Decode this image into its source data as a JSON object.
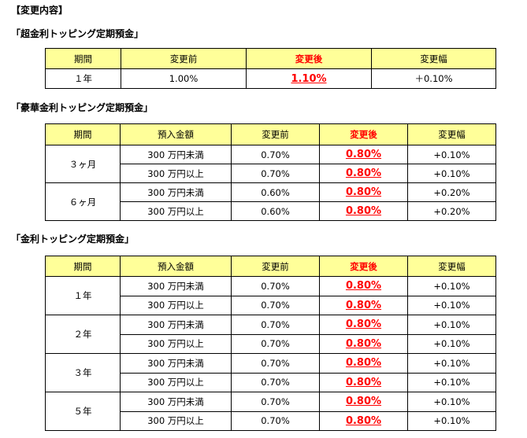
{
  "heading": "【変更内容】",
  "sections": [
    {
      "title": "「超金利トッピング定期預金」",
      "columns": [
        "期間",
        "変更前",
        "変更後",
        "変更幅"
      ],
      "rows": [
        {
          "period": "１年",
          "before": "1.00%",
          "after": "1.10%",
          "change": "＋0.10%"
        }
      ]
    },
    {
      "title": "「豪華金利トッピング定期預金」",
      "columns": [
        "期間",
        "預入金額",
        "変更前",
        "変更後",
        "変更幅"
      ],
      "groups": [
        {
          "period": "３ヶ月",
          "rows": [
            {
              "amount": "300 万円未満",
              "before": "0.70%",
              "after": "0.80%",
              "change": "+0.10%"
            },
            {
              "amount": "300 万円以上",
              "before": "0.70%",
              "after": "0.80%",
              "change": "+0.10%"
            }
          ]
        },
        {
          "period": "６ヶ月",
          "rows": [
            {
              "amount": "300 万円未満",
              "before": "0.60%",
              "after": "0.80%",
              "change": "+0.20%"
            },
            {
              "amount": "300 万円以上",
              "before": "0.60%",
              "after": "0.80%",
              "change": "+0.20%"
            }
          ]
        }
      ]
    },
    {
      "title": "「金利トッピング定期預金」",
      "columns": [
        "期間",
        "預入金額",
        "変更前",
        "変更後",
        "変更幅"
      ],
      "groups": [
        {
          "period": "１年",
          "rows": [
            {
              "amount": "300 万円未満",
              "before": "0.70%",
              "after": "0.80%",
              "change": "+0.10%"
            },
            {
              "amount": "300 万円以上",
              "before": "0.70%",
              "after": "0.80%",
              "change": "+0.10%"
            }
          ]
        },
        {
          "period": "２年",
          "rows": [
            {
              "amount": "300 万円未満",
              "before": "0.70%",
              "after": "0.80%",
              "change": "+0.10%"
            },
            {
              "amount": "300 万円以上",
              "before": "0.70%",
              "after": "0.80%",
              "change": "+0.10%"
            }
          ]
        },
        {
          "period": "３年",
          "rows": [
            {
              "amount": "300 万円未満",
              "before": "0.70%",
              "after": "0.80%",
              "change": "+0.10%"
            },
            {
              "amount": "300 万円以上",
              "before": "0.70%",
              "after": "0.80%",
              "change": "+0.10%"
            }
          ]
        },
        {
          "period": "５年",
          "rows": [
            {
              "amount": "300 万円未満",
              "before": "0.70%",
              "after": "0.80%",
              "change": "+0.10%"
            },
            {
              "amount": "300 万円以上",
              "before": "0.70%",
              "after": "0.80%",
              "change": "+0.10%"
            }
          ]
        }
      ]
    }
  ]
}
